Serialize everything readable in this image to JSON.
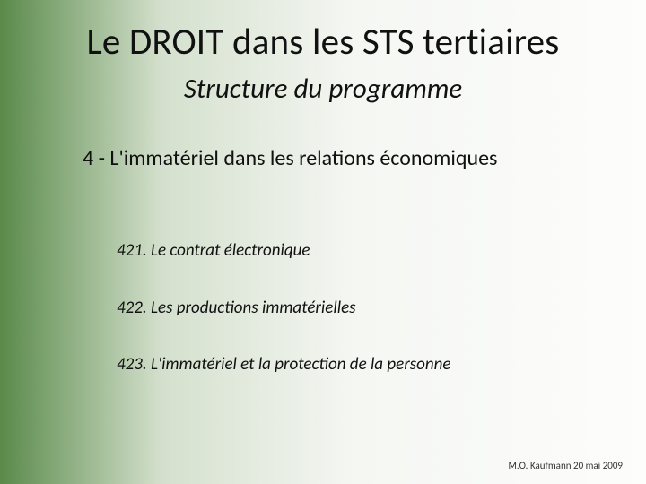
{
  "background": {
    "gradient_stops": [
      "#5a8a4a",
      "#d4e0cd",
      "#f5f7f3",
      "#fdfdfc"
    ],
    "gradient_positions": [
      "0%",
      "25%",
      "55%",
      "100%"
    ]
  },
  "title": {
    "text": "Le DROIT dans les STS tertiaires",
    "fontsize": 41,
    "color": "#111111",
    "font_family": "Calibri"
  },
  "subtitle": {
    "text": "Structure du programme",
    "fontsize": 31,
    "color": "#111111",
    "italic": true
  },
  "section_heading": {
    "text": "4 - L'immatériel dans les relations économiques",
    "fontsize": 24,
    "color": "#111111"
  },
  "items": [
    {
      "text": "421. Le contrat électronique",
      "fontsize": 19,
      "italic": true
    },
    {
      "text": "422. Les productions immatérielles",
      "fontsize": 19,
      "italic": true
    },
    {
      "text": "423. L'immatériel et la protection de la personne",
      "fontsize": 19,
      "italic": true
    }
  ],
  "footer": {
    "text": "M.O. Kaufmann 20 mai 2009",
    "fontsize": 11,
    "color": "#333333"
  }
}
